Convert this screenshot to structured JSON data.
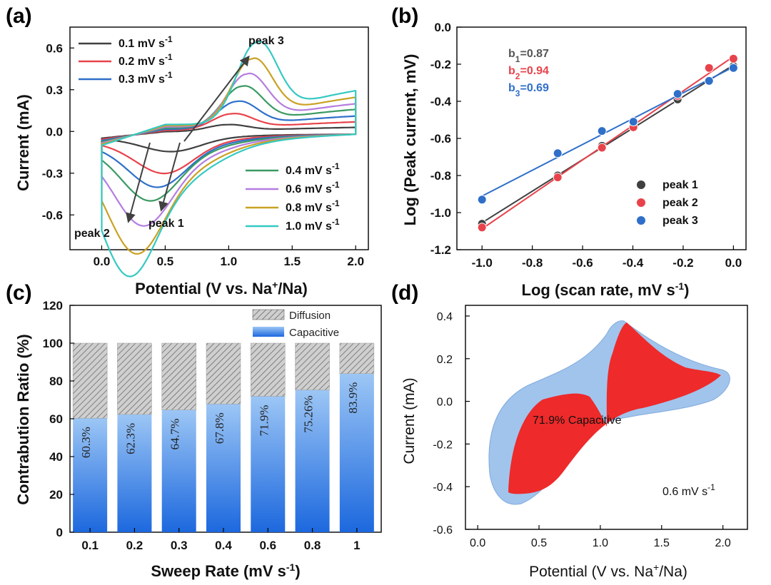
{
  "chart_data": [
    {
      "panel": "(a)",
      "type": "line",
      "xlabel": "Potential (V vs. Na+/Na)",
      "ylabel": "Current (mA)",
      "xlim": [
        -0.25,
        2.1
      ],
      "ylim": [
        -0.85,
        0.75
      ],
      "xticks": [
        "0.0",
        "0.5",
        "1.0",
        "1.5",
        "2.0"
      ],
      "yticks": [
        "-0.6",
        "-0.3",
        "0.0",
        "0.3",
        "0.6"
      ],
      "annotations": [
        "peak 3",
        "peak 1",
        "peak 2"
      ],
      "series": [
        {
          "name": "0.1 mV s-1",
          "color": "#404040",
          "anodic_peak": 0.05,
          "cathodic_peak": -0.08
        },
        {
          "name": "0.2 mV s-1",
          "color": "#e8434b",
          "anodic_peak": 0.12,
          "cathodic_peak": -0.18
        },
        {
          "name": "0.3 mV s-1",
          "color": "#2f6fc9",
          "anodic_peak": 0.2,
          "cathodic_peak": -0.24
        },
        {
          "name": "0.4 mV s-1",
          "color": "#3a9a63",
          "anodic_peak": 0.3,
          "cathodic_peak": -0.3
        },
        {
          "name": "0.6 mV s-1",
          "color": "#b57de0",
          "anodic_peak": 0.38,
          "cathodic_peak": -0.42
        },
        {
          "name": "0.8 mV s-1",
          "color": "#c9a224",
          "anodic_peak": 0.48,
          "cathodic_peak": -0.56
        },
        {
          "name": "1.0 mV s-1",
          "color": "#35c9c2",
          "anodic_peak": 0.59,
          "cathodic_peak": -0.68
        }
      ]
    },
    {
      "panel": "(b)",
      "type": "scatter",
      "xlabel": "Log (scan rate, mV s-1)",
      "ylabel": "Log (Peak current, mV)",
      "xlim": [
        -1.1,
        0.05
      ],
      "ylim": [
        -1.2,
        0.0
      ],
      "xticks": [
        "-1.0",
        "-0.8",
        "-0.6",
        "-0.4",
        "-0.2",
        "0.0"
      ],
      "yticks": [
        "-1.2",
        "-1.0",
        "-0.8",
        "-0.6",
        "-0.4",
        "-0.2",
        "0.0"
      ],
      "x": [
        -1.0,
        -0.699,
        -0.523,
        -0.398,
        -0.222,
        -0.097,
        0.0
      ],
      "series": [
        {
          "name": "peak 1",
          "color": "#404040",
          "values": [
            -1.06,
            -0.8,
            -0.64,
            -0.54,
            -0.39,
            -0.29,
            -0.21
          ],
          "fit_label": "b1=0.87"
        },
        {
          "name": "peak 2",
          "color": "#e8434b",
          "values": [
            -1.08,
            -0.81,
            -0.65,
            -0.54,
            -0.37,
            -0.22,
            -0.17
          ],
          "fit_label": "b2=0.94"
        },
        {
          "name": "peak 3",
          "color": "#2f6fc9",
          "values": [
            -0.93,
            -0.68,
            -0.56,
            -0.51,
            -0.36,
            -0.29,
            -0.22
          ],
          "fit_label": "b3=0.69"
        }
      ]
    },
    {
      "panel": "(c)",
      "type": "bar",
      "xlabel": "Sweep Rate (mV s-1)",
      "ylabel": "Contrabution Ratio (%)",
      "ylim": [
        0,
        120
      ],
      "yticks": [
        "0",
        "20",
        "40",
        "60",
        "80",
        "100",
        "120"
      ],
      "categories": [
        "0.1",
        "0.2",
        "0.3",
        "0.4",
        "0.6",
        "0.8",
        "1"
      ],
      "series": [
        {
          "name": "Capacitive",
          "values": [
            60.3,
            62.3,
            64.7,
            67.8,
            71.9,
            75.26,
            83.9
          ]
        },
        {
          "name": "Diffusion",
          "values": [
            39.7,
            37.7,
            35.3,
            32.2,
            28.1,
            24.74,
            16.1
          ]
        }
      ],
      "value_labels": [
        "60.3%",
        "62.3%",
        "64.7%",
        "67.8%",
        "71.9%",
        "75.26%",
        "83.9%"
      ]
    },
    {
      "panel": "(d)",
      "type": "area",
      "xlabel": "Potential (V vs. Na+/Na)",
      "ylabel": "Current (mA)",
      "xlim": [
        -0.1,
        2.2
      ],
      "ylim": [
        -0.6,
        0.45
      ],
      "xticks": [
        "0.0",
        "0.5",
        "1.0",
        "1.5",
        "2.0"
      ],
      "yticks": [
        "-0.6",
        "-0.4",
        "-0.2",
        "0.0",
        "0.2",
        "0.4"
      ],
      "annotation": "71.9% Capacitive",
      "scan_rate": "0.6 mV s-1"
    }
  ],
  "panels": {
    "a": {
      "label": "(a)",
      "xlabel_main": "Potential (V vs. Na",
      "xlabel_sup": "+",
      "xlabel_end": "/Na)",
      "ylabel": "Current (mA)"
    },
    "b": {
      "label": "(b)",
      "xlabel_main": "Log (scan rate, mV s",
      "xlabel_sup": "-1",
      "xlabel_end": ")",
      "ylabel": "Log (Peak current, mV)",
      "fits": [
        {
          "b": "b",
          "sub": "1",
          "val": "=0.87"
        },
        {
          "b": "b",
          "sub": "2",
          "val": "=0.94"
        },
        {
          "b": "b",
          "sub": "3",
          "val": "=0.69"
        }
      ]
    },
    "c": {
      "label": "(c)",
      "xlabel_main": "Sweep Rate (mV s",
      "xlabel_sup": "-1",
      "xlabel_end": ")",
      "ylabel": "Contrabution Ratio (%)"
    },
    "d": {
      "label": "(d)",
      "xlabel_main": "Potential (V vs. Na",
      "xlabel_sup": "+",
      "xlabel_end": "/Na)",
      "ylabel": "Current (mA)",
      "rate_main": "0.6 mV s",
      "rate_sup": "-1"
    }
  },
  "legend_a": [
    {
      "main": "0.1 mV s",
      "sup": "-1"
    },
    {
      "main": "0.2 mV s",
      "sup": "-1"
    },
    {
      "main": "0.3 mV s",
      "sup": "-1"
    },
    {
      "main": "0.4 mV s",
      "sup": "-1"
    },
    {
      "main": "0.6 mV s",
      "sup": "-1"
    },
    {
      "main": "0.8 mV s",
      "sup": "-1"
    },
    {
      "main": "1.0 mV s",
      "sup": "-1"
    }
  ],
  "colors": {
    "gray": "#404040",
    "red": "#e8434b",
    "blue": "#2f6fc9",
    "green": "#3a9a63",
    "purple": "#b57de0",
    "gold": "#c9a224",
    "cyan": "#35c9c2",
    "capacitive_top": "#86b6f0",
    "capacitive_bottom": "#1f6fe0",
    "d_total": "#9cc1ec",
    "d_capacitive": "#ee2a2a"
  }
}
